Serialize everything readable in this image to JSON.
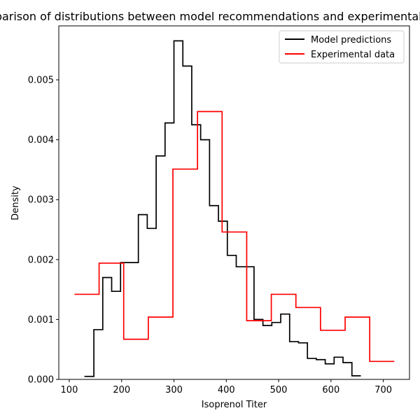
{
  "chart_data": {
    "type": "histogram-step",
    "title": "Comparison of distributions between model recommendations and experimental data",
    "xlabel": "Isoprenol Titer",
    "ylabel": "Density",
    "xlim": [
      80,
      750
    ],
    "ylim": [
      0,
      0.0059
    ],
    "xticks": [
      100,
      200,
      300,
      400,
      500,
      600,
      700
    ],
    "yticks": [
      0.0,
      0.001,
      0.002,
      0.003,
      0.004,
      0.005
    ],
    "ytick_labels": [
      "0.000",
      "0.001",
      "0.002",
      "0.003",
      "0.004",
      "0.005"
    ],
    "legend": {
      "placement": "top-right",
      "entries": [
        "Model predictions",
        "Experimental data"
      ]
    },
    "grid": false,
    "series": [
      {
        "name": "Model predictions",
        "color": "#000000",
        "edges": [
          129,
          147,
          164,
          181,
          198,
          215,
          232,
          249,
          266,
          283,
          300,
          317,
          334,
          351,
          368,
          385,
          402,
          419,
          436,
          453,
          470,
          487,
          504,
          521,
          538,
          555,
          572,
          589,
          606,
          623,
          640,
          657
        ],
        "values": [
          5e-05,
          0.00083,
          0.0017,
          0.00147,
          0.00195,
          0.00195,
          0.00275,
          0.00252,
          0.00373,
          0.00428,
          0.00565,
          0.00523,
          0.00425,
          0.004,
          0.0029,
          0.00264,
          0.00207,
          0.00188,
          0.00188,
          0.001,
          0.0009,
          0.00095,
          0.00109,
          0.00063,
          0.00061,
          0.00035,
          0.00033,
          0.00026,
          0.00037,
          0.00028,
          6e-05
        ]
      },
      {
        "name": "Experimental data",
        "color": "#ff0000",
        "edges": [
          110,
          157,
          204,
          251,
          298,
          345,
          392,
          439,
          486,
          533,
          580,
          627,
          674,
          721
        ],
        "values": [
          0.00142,
          0.00194,
          0.00067,
          0.00104,
          0.00351,
          0.00447,
          0.00246,
          0.00098,
          0.00142,
          0.0012,
          0.00082,
          0.00104,
          0.0003
        ]
      }
    ]
  }
}
